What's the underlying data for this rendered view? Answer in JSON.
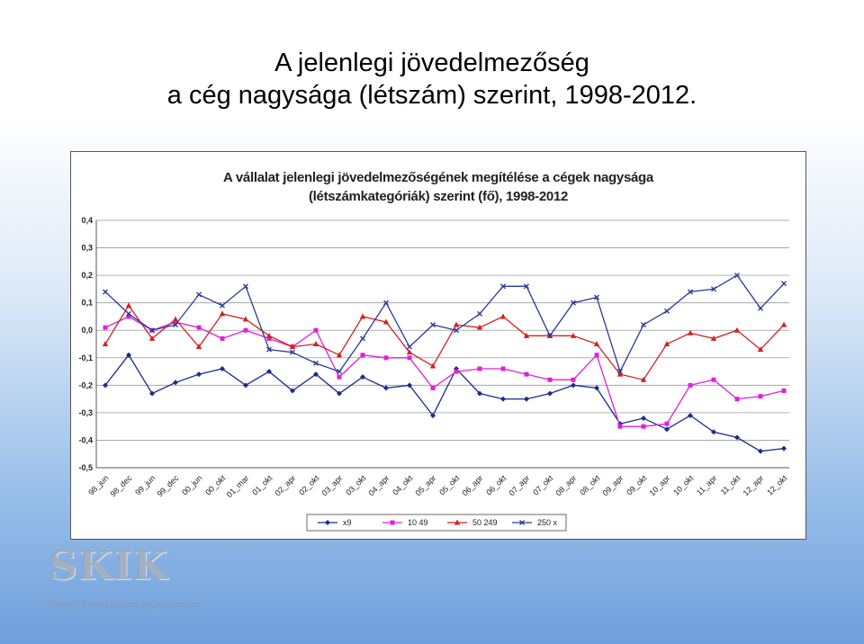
{
  "slide": {
    "title_line1": "A jelenlegi jövedelmezőség",
    "title_line2": "a cég nagysága (létszám) szerint, 1998-2012."
  },
  "chart_data": {
    "type": "line",
    "title": "A vállalat jelenlegi jövedelmezőségének megítélése a cégek nagysága",
    "subtitle": "(létszámkategóriák) szerint (fő), 1998-2012",
    "xlabel": "",
    "ylabel": "",
    "ylim": [
      -0.5,
      0.4
    ],
    "yticks": [
      "0,4",
      "0,3",
      "0,2",
      "0,1",
      "0,0",
      "-0,1",
      "-0,2",
      "-0,3",
      "-0,4",
      "-0,5"
    ],
    "grid": true,
    "legend_position": "bottom",
    "categories": [
      "98_jun",
      "98_dec",
      "99_jun",
      "99_dec",
      "00_jun",
      "00_okt",
      "01_mar",
      "01_okt",
      "02_apr",
      "02_okt",
      "03_apr",
      "03_okt",
      "04_apr",
      "04_okt",
      "05_apr",
      "05_okt",
      "06_apr",
      "06_okt",
      "07_apr",
      "07_okt",
      "08_apr",
      "08_okt",
      "09_apr",
      "09_okt",
      "10_apr",
      "10_okt",
      "11_apr",
      "11_okt",
      "12_apr",
      "12_okt"
    ],
    "x_positions": [
      0,
      1,
      2,
      3,
      4,
      5,
      6,
      7,
      8,
      9,
      10,
      11,
      12,
      13,
      14,
      15,
      16,
      17,
      18,
      19,
      20,
      21,
      22,
      23,
      24,
      25,
      26,
      27,
      28,
      29
    ],
    "series": [
      {
        "name": "x9",
        "color": "#1a2c8c",
        "marker": "diamond",
        "points": [
          [
            0,
            -0.2
          ],
          [
            1,
            -0.09
          ],
          [
            2,
            -0.23
          ],
          [
            3,
            -0.19
          ],
          [
            4,
            -0.16
          ],
          [
            5,
            -0.14
          ],
          [
            6,
            -0.2
          ],
          [
            7,
            -0.15
          ],
          [
            8,
            -0.22
          ],
          [
            9,
            -0.16
          ],
          [
            10,
            -0.23
          ],
          [
            11,
            -0.17
          ],
          [
            12,
            -0.21
          ],
          [
            13,
            -0.2
          ],
          [
            14,
            -0.31
          ],
          [
            15,
            -0.14
          ],
          [
            16,
            -0.23
          ],
          [
            17,
            -0.25
          ],
          [
            18,
            -0.25
          ],
          [
            19,
            -0.23
          ],
          [
            20,
            -0.2
          ],
          [
            21,
            -0.21
          ],
          [
            22,
            -0.34
          ],
          [
            23,
            -0.32
          ],
          [
            24,
            -0.36
          ],
          [
            25,
            -0.31
          ],
          [
            26,
            -0.37
          ],
          [
            27,
            -0.39
          ],
          [
            28,
            -0.44
          ],
          [
            29,
            -0.43
          ]
        ]
      },
      {
        "name": "10 49",
        "color": "#e020d8",
        "marker": "square",
        "points": [
          [
            0,
            0.01
          ],
          [
            1,
            0.05
          ],
          [
            2,
            0.0
          ],
          [
            3,
            0.03
          ],
          [
            4,
            0.01
          ],
          [
            5,
            -0.03
          ],
          [
            6,
            0.0
          ],
          [
            7,
            -0.03
          ],
          [
            8,
            -0.06
          ],
          [
            9,
            0.0
          ],
          [
            10,
            -0.17
          ],
          [
            11,
            -0.09
          ],
          [
            12,
            -0.1
          ],
          [
            13,
            -0.1
          ],
          [
            14,
            -0.21
          ],
          [
            15,
            -0.15
          ],
          [
            16,
            -0.14
          ],
          [
            17,
            -0.14
          ],
          [
            18,
            -0.16
          ],
          [
            19,
            -0.18
          ],
          [
            20,
            -0.18
          ],
          [
            21,
            -0.09
          ],
          [
            22,
            -0.35
          ],
          [
            23,
            -0.35
          ],
          [
            24,
            -0.34
          ],
          [
            25,
            -0.2
          ],
          [
            26,
            -0.18
          ],
          [
            27,
            -0.25
          ],
          [
            28,
            -0.24
          ],
          [
            29,
            -0.22
          ]
        ]
      },
      {
        "name": "50 249",
        "color": "#d42020",
        "marker": "triangle",
        "points": [
          [
            0,
            -0.05
          ],
          [
            1,
            0.09
          ],
          [
            2,
            -0.03
          ],
          [
            3,
            0.04
          ],
          [
            4,
            -0.06
          ],
          [
            5,
            0.06
          ],
          [
            6,
            0.04
          ],
          [
            7,
            -0.02
          ],
          [
            8,
            -0.06
          ],
          [
            9,
            -0.05
          ],
          [
            10,
            -0.09
          ],
          [
            11,
            0.05
          ],
          [
            12,
            0.03
          ],
          [
            13,
            -0.08
          ],
          [
            14,
            -0.13
          ],
          [
            15,
            0.02
          ],
          [
            16,
            0.01
          ],
          [
            17,
            0.05
          ],
          [
            18,
            -0.02
          ],
          [
            19,
            -0.02
          ],
          [
            20,
            -0.02
          ],
          [
            21,
            -0.05
          ],
          [
            22,
            -0.16
          ],
          [
            23,
            -0.18
          ],
          [
            24,
            -0.05
          ],
          [
            25,
            -0.01
          ],
          [
            26,
            -0.03
          ],
          [
            27,
            0.0
          ],
          [
            28,
            -0.07
          ],
          [
            29,
            0.02
          ]
        ]
      },
      {
        "name": "250 x",
        "color": "#2a3a9a",
        "marker": "x",
        "points": [
          [
            0,
            0.14
          ],
          [
            1,
            0.06
          ],
          [
            2,
            0.0
          ],
          [
            3,
            0.02
          ],
          [
            4,
            0.13
          ],
          [
            5,
            0.09
          ],
          [
            6,
            0.16
          ],
          [
            7,
            -0.07
          ],
          [
            8,
            -0.08
          ],
          [
            9,
            -0.12
          ],
          [
            10,
            -0.15
          ],
          [
            11,
            -0.03
          ],
          [
            12,
            0.1
          ],
          [
            13,
            -0.06
          ],
          [
            14,
            0.02
          ],
          [
            15,
            0.0
          ],
          [
            16,
            0.06
          ],
          [
            17,
            0.16
          ],
          [
            18,
            0.16
          ],
          [
            19,
            -0.02
          ],
          [
            20,
            0.1
          ],
          [
            21,
            0.12
          ],
          [
            22,
            -0.15
          ],
          [
            23,
            0.02
          ],
          [
            24,
            0.07
          ],
          [
            25,
            0.14
          ],
          [
            26,
            0.15
          ],
          [
            27,
            0.2
          ],
          [
            28,
            0.08
          ],
          [
            29,
            0.17
          ]
        ]
      }
    ]
  },
  "logo": {
    "name": "SKIK",
    "subtitle": "Szegedi Kereskedelmi és Iparkamara"
  }
}
